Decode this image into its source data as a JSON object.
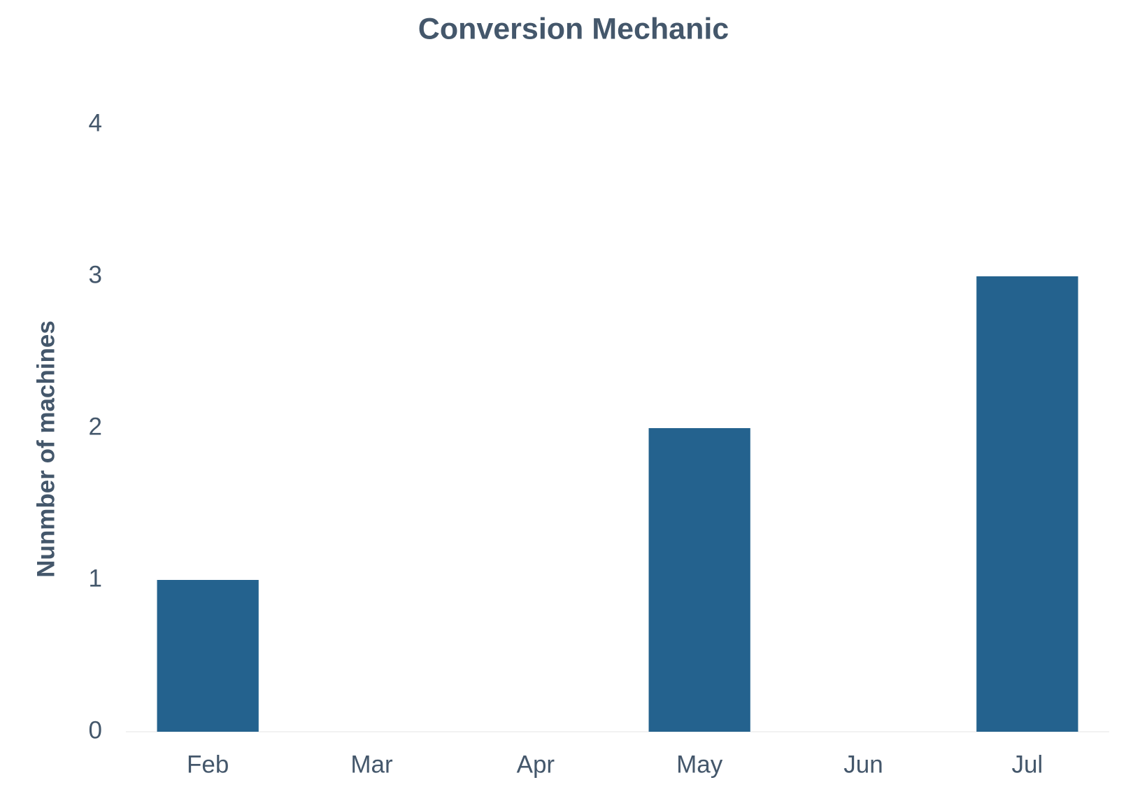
{
  "chart_data": {
    "type": "bar",
    "title": "Conversion Mechanic",
    "y_label": "Nunmber of machines",
    "categories": [
      "Feb",
      "Mar",
      "Apr",
      "May",
      "Jun",
      "Jul"
    ],
    "values": [
      1,
      0,
      0,
      2,
      0,
      3
    ],
    "color": "#24628e",
    "ylim": [
      0,
      4
    ],
    "yticks": [
      0,
      1,
      2,
      3,
      4
    ],
    "grid": false
  }
}
